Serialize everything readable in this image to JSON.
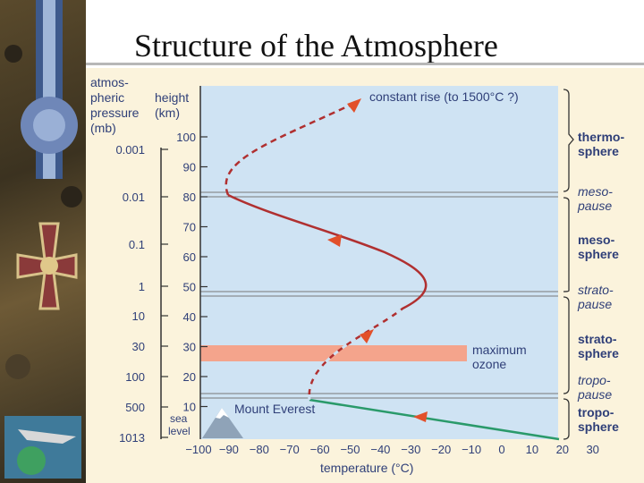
{
  "title": "Structure of the Atmosphere",
  "axis_headers": {
    "pressure": [
      "atmos-",
      "pheric",
      "pressure",
      "(mb)"
    ],
    "height": [
      "height",
      "(km)"
    ]
  },
  "x_axis": {
    "label": "temperature (°C)",
    "ticks": [
      "−100",
      "−90",
      "−80",
      "−70",
      "−60",
      "−50",
      "−40",
      "−30",
      "−20",
      "−10",
      "0",
      "10",
      "20",
      "30"
    ]
  },
  "height_ticks": [
    "100",
    "90",
    "80",
    "70",
    "60",
    "50",
    "40",
    "30",
    "20",
    "10"
  ],
  "pressure_ticks": [
    "0.001",
    "0.01",
    "0.1",
    "1",
    "10",
    "30",
    "100",
    "500",
    "1013"
  ],
  "sea_level_label": [
    "sea",
    "level"
  ],
  "annotations": {
    "constant_rise": "constant rise (to 1500°C ?)",
    "maximum_ozone": [
      "maximum",
      "ozone"
    ],
    "mount_everest": "Mount Everest"
  },
  "layers": {
    "thermosphere": [
      "thermo-",
      "sphere"
    ],
    "mesopause": [
      "meso-",
      "pause"
    ],
    "mesosphere": [
      "meso-",
      "sphere"
    ],
    "stratopause": [
      "strato-",
      "pause"
    ],
    "stratosphere": [
      "strato-",
      "sphere"
    ],
    "tropopause": [
      "tropo-",
      "pause"
    ],
    "troposphere": [
      "tropo-",
      "sphere"
    ]
  },
  "colors": {
    "profile": "#b03030",
    "troposphere_profile": "#2a9a6a",
    "arrow": "#e2502a",
    "ozone_band": "#f4a48c",
    "sky": "#cfe3f3",
    "heading": "#2f3f78"
  },
  "decor": {
    "left_strip": "medal-collage",
    "mountain": "mountain-icon"
  }
}
